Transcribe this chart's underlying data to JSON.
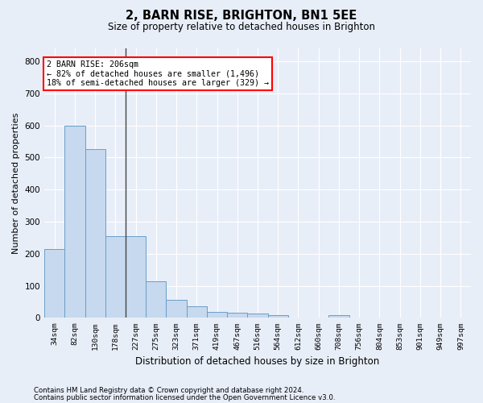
{
  "title": "2, BARN RISE, BRIGHTON, BN1 5EE",
  "subtitle": "Size of property relative to detached houses in Brighton",
  "xlabel": "Distribution of detached houses by size in Brighton",
  "ylabel": "Number of detached properties",
  "footnote1": "Contains HM Land Registry data © Crown copyright and database right 2024.",
  "footnote2": "Contains public sector information licensed under the Open Government Licence v3.0.",
  "annotation_line1": "2 BARN RISE: 206sqm",
  "annotation_line2": "← 82% of detached houses are smaller (1,496)",
  "annotation_line3": "18% of semi-detached houses are larger (329) →",
  "bar_color": "#c6d9ee",
  "bar_edge_color": "#6b9dc8",
  "background_color": "#e8eef8",
  "grid_color": "#ffffff",
  "categories": [
    "34sqm",
    "82sqm",
    "130sqm",
    "178sqm",
    "227sqm",
    "275sqm",
    "323sqm",
    "371sqm",
    "419sqm",
    "467sqm",
    "516sqm",
    "564sqm",
    "612sqm",
    "660sqm",
    "708sqm",
    "756sqm",
    "804sqm",
    "853sqm",
    "901sqm",
    "949sqm",
    "997sqm"
  ],
  "values": [
    215,
    600,
    525,
    255,
    255,
    115,
    57,
    35,
    18,
    15,
    13,
    9,
    0,
    0,
    8,
    0,
    0,
    0,
    0,
    0,
    0
  ],
  "ylim": [
    0,
    840
  ],
  "yticks": [
    0,
    100,
    200,
    300,
    400,
    500,
    600,
    700,
    800
  ],
  "vline_x": 3.5
}
